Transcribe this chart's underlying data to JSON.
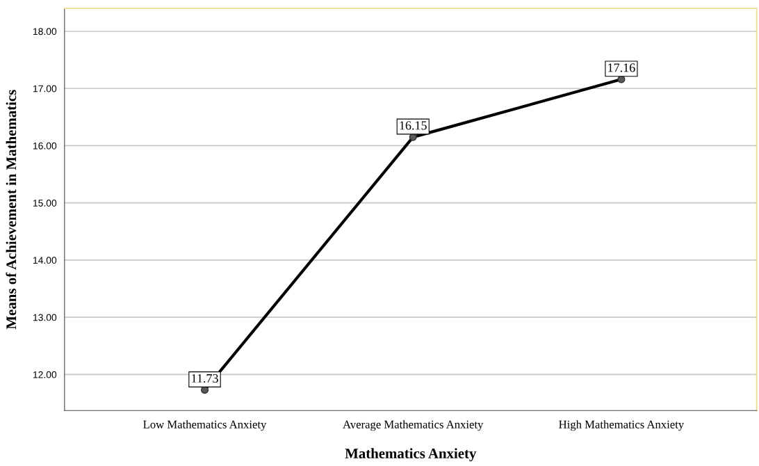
{
  "chart_data": {
    "type": "line",
    "xlabel": "Mathematics Anxiety",
    "ylabel": "Means of Achievement in Mathematics",
    "categories": [
      "Low Mathematics Anxiety",
      "Average Mathematics Anxiety",
      "High Mathematics Anxiety"
    ],
    "series": [
      {
        "color": "#000000",
        "values": [
          11.73,
          16.15,
          17.16
        ]
      }
    ],
    "ylim": [
      11.37,
      18.4
    ],
    "yticks": [
      {
        "value": 12,
        "label": "12.00"
      },
      {
        "value": 13,
        "label": "13.00"
      },
      {
        "value": 14,
        "label": "14.00"
      },
      {
        "value": 15,
        "label": "15.00"
      },
      {
        "value": 16,
        "label": "16.00"
      },
      {
        "value": 17,
        "label": "17.00"
      },
      {
        "value": 18,
        "label": "18.00"
      }
    ],
    "grid": "y",
    "marker": "circle",
    "line_style": "solid",
    "data_labels": true
  }
}
